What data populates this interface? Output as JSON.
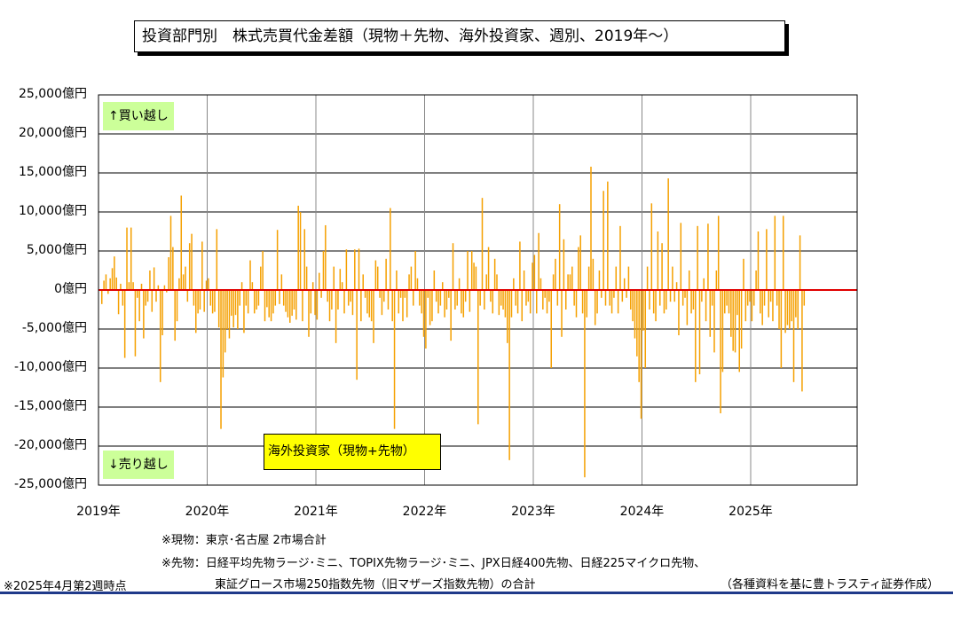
{
  "title": "投資部門別　株式売買代金差額（現物＋先物、海外投資家、週別、2019年～）",
  "labels": {
    "buy": "↑買い越し",
    "sell": "↓売り越し",
    "series": "海外投資家（現物+先物）"
  },
  "notes": {
    "spot": "※現物：東京･名古屋 2市場合計",
    "futures_line1": "※先物：日経平均先物ラージ･ミニ、TOPIX先物ラージ･ミニ、JPX日経400先物、日経225マイクロ先物、",
    "futures_line2": "東証グロース市場250指数先物（旧マザーズ指数先物）の合計",
    "asof": "※2025年4月第2週時点",
    "source": "（各種資料を基に豊トラスティ証券作成）"
  },
  "colors": {
    "bar": "#f5a000",
    "zero_line": "#e00000",
    "label_buy_sell": "#ccff99",
    "label_series": "#ffff00"
  },
  "chart_data": {
    "type": "bar",
    "title": "投資部門別　株式売買代金差額（現物＋先物、海外投資家、週別、2019年～）",
    "y_unit": "億円",
    "ylim": [
      -25000,
      25000
    ],
    "y_ticks": [
      "25,000億円",
      "20,000億円",
      "15,000億円",
      "10,000億円",
      "5,000億円",
      "0億円",
      "-5,000億円",
      "-10,000億円",
      "-15,000億円",
      "-20,000億円",
      "-25,000億円"
    ],
    "x_ticks": [
      "2019年",
      "2020年",
      "2021年",
      "2022年",
      "2023年",
      "2024年",
      "2025年"
    ],
    "x_start": "2019年",
    "x_end": "2026年",
    "weeks_per_year": 52,
    "grid": true,
    "series": [
      {
        "name": "海外投資家（現物+先物）",
        "values": [
          -1800,
          1200,
          2000,
          -500,
          1500,
          2800,
          4300,
          1600,
          -3100,
          800,
          -2000,
          -8700,
          8000,
          1000,
          8000,
          1000,
          -8500,
          -1000,
          -4000,
          800,
          -6200,
          -2000,
          -1500,
          2500,
          -2800,
          2900,
          -1500,
          600,
          -11800,
          -5800,
          600,
          -300,
          4200,
          9500,
          5500,
          -6500,
          -4000,
          1500,
          12100,
          2000,
          3000,
          -1500,
          6000,
          7200,
          -2000,
          -5500,
          -3000,
          -2500,
          6200,
          -2800,
          1200,
          1500,
          -2000,
          -3000,
          -2800,
          7800,
          -4800,
          -17800,
          -11200,
          -8000,
          -5000,
          -6200,
          -3300,
          -4800,
          -3200,
          -5000,
          -2000,
          1000,
          -5500,
          -2000,
          -3000,
          3800,
          1000,
          -3000,
          -2500,
          -2000,
          3000,
          5000,
          -4000,
          -2200,
          -3500,
          -4000,
          -3000,
          -2000,
          7700,
          -1800,
          2000,
          -2000,
          -2800,
          -3500,
          -4200,
          -3300,
          -2500,
          -3800,
          10800,
          10000,
          -4000,
          7800,
          3000,
          -6000,
          -3000,
          1000,
          -3200,
          -3800,
          2200,
          -1000,
          5000,
          8300,
          -1500,
          -4000,
          -2500,
          3000,
          -6800,
          -2500,
          2700,
          1000,
          -3000,
          5200,
          -2000,
          -1500,
          -3200,
          5200,
          -11500,
          5300,
          -4000,
          2000,
          -1000,
          -3000,
          -3500,
          -4000,
          -6800,
          3800,
          3000,
          -1000,
          -3200,
          -1500,
          4000,
          -2500,
          10500,
          -4000,
          -17800,
          2500,
          -3000,
          -1000,
          -4000,
          -1000,
          -3500,
          2000,
          3000,
          -2000,
          5000,
          1500,
          -2000,
          -3000,
          -6000,
          -7500,
          -1000,
          -4500,
          -4000,
          2500,
          -1500,
          -3000,
          -2000,
          1000,
          -3500,
          -2500,
          -1000,
          -6500,
          6000,
          -2500,
          -2000,
          1500,
          -3000,
          -3500,
          -1500,
          5000,
          -2800,
          5000,
          3500,
          3000,
          -17200,
          -2000,
          11800,
          -2500,
          2000,
          5500,
          -1500,
          -3000,
          4000,
          2000,
          -3200,
          -2000,
          -2500,
          -3500,
          -6800,
          -21800,
          -3500,
          1500,
          -2000,
          -3000,
          6200,
          -4000,
          2500,
          -2000,
          -1500,
          -3000,
          3500,
          4500,
          -3000,
          7300,
          1500,
          -2500,
          -1000,
          -3000,
          -1500,
          -10000,
          2000,
          4000,
          -2000,
          11000,
          -6000,
          6500,
          -2500,
          2000,
          2000,
          3000,
          -2000,
          -3500,
          5500,
          7000,
          -3000,
          -24000,
          -3500,
          3000,
          15800,
          4000,
          -4500,
          -3000,
          2500,
          -1000,
          12700,
          -2000,
          13900,
          -2000,
          -3000,
          -1000,
          3000,
          -3000,
          8200,
          -1500,
          1500,
          -1000,
          3000,
          -2500,
          -4000,
          -6200,
          -8500,
          -11800,
          -16500,
          -5200,
          -10000,
          3000,
          -2500,
          11100,
          -3000,
          -4000,
          7500,
          -2000,
          6000,
          -3000,
          -2500,
          14300,
          -1500,
          3000,
          -1500,
          1000,
          -5800,
          8600,
          -2000,
          -1000,
          -4500,
          2500,
          -3000,
          -2500,
          -11800,
          8200,
          -10800,
          -1500,
          1500,
          -4000,
          8500,
          -6000,
          -2000,
          -8000,
          2500,
          9500,
          -15800,
          -10500,
          -3000,
          -2000,
          -3000,
          -6000,
          -7800,
          -8000,
          -3200,
          -10500,
          -7500,
          4000,
          -4000,
          -2000,
          -1500,
          -4000,
          -2000,
          2500,
          7500,
          -3000,
          -4500,
          -2000,
          7800,
          -3500,
          -1500,
          -4000,
          9500,
          -2000,
          -5000,
          -10000,
          9500,
          -5500,
          -4500,
          -5000,
          -4000,
          -11800,
          -3500,
          -5000,
          7000,
          -13000,
          -2000
        ]
      }
    ]
  }
}
